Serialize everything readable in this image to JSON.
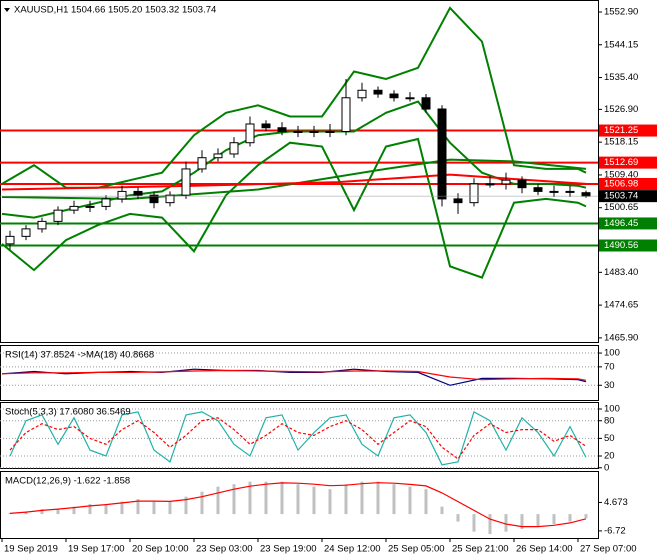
{
  "chart_data": [
    {
      "type": "candlestick",
      "title": "XAUUSD,H1  1504.66 1505.20 1503.32 1503.74",
      "x": [
        2,
        6,
        10,
        14,
        18,
        22,
        26,
        30,
        34,
        38,
        42,
        46,
        50,
        54,
        58,
        62,
        66,
        70,
        74,
        78,
        82,
        86,
        90,
        94,
        98,
        102,
        106,
        110,
        114,
        118,
        122,
        126,
        130,
        134,
        138,
        142,
        146
      ],
      "open": [
        1491,
        1493,
        1495,
        1497,
        1500,
        1501,
        1501,
        1503,
        1505,
        1504,
        1502,
        1504,
        1511,
        1514,
        1515,
        1518,
        1523,
        1522,
        1521,
        1521,
        1521,
        1521,
        1530,
        1532,
        1531,
        1530,
        1530,
        1527,
        1503,
        1502,
        1507,
        1507,
        1508,
        1506,
        1505,
        1505,
        1504.66
      ],
      "high": [
        1494.5,
        1496,
        1498,
        1501,
        1502.5,
        1502.5,
        1504,
        1506.5,
        1506,
        1505,
        1505,
        1513,
        1516,
        1516.5,
        1519.5,
        1525,
        1524,
        1523.5,
        1522.5,
        1522.5,
        1523,
        1535,
        1534,
        1533,
        1532,
        1531.5,
        1531,
        1528,
        1504.5,
        1508.5,
        1509,
        1510,
        1509,
        1507,
        1506.5,
        1506.5,
        1505.2
      ],
      "low": [
        1489.5,
        1492,
        1494,
        1496,
        1499,
        1499.5,
        1500,
        1502,
        1503,
        1500.5,
        1501,
        1503,
        1510,
        1513,
        1514,
        1517,
        1521,
        1520,
        1519.5,
        1519.5,
        1519.5,
        1520,
        1529,
        1530,
        1529,
        1529,
        1526,
        1501,
        1499,
        1501,
        1506,
        1505.5,
        1504.5,
        1504,
        1503.5,
        1503.5,
        1503.32
      ],
      "close": [
        1493,
        1495,
        1497,
        1500,
        1501,
        1501,
        1503,
        1505,
        1504,
        1502,
        1504,
        1511,
        1514,
        1515,
        1518,
        1523,
        1522,
        1521,
        1521,
        1521,
        1521,
        1530,
        1532,
        1531,
        1530,
        1530,
        1527,
        1503,
        1502,
        1507,
        1507,
        1508,
        1506,
        1505,
        1505,
        1505,
        1503.74
      ],
      "bull_color": "#ffffff",
      "bear_color": "#000000",
      "lines": [
        {
          "color": "#008000",
          "x": [
            0,
            8,
            16,
            24,
            32,
            40,
            48,
            56,
            64,
            72,
            80,
            88,
            96,
            104,
            112,
            120,
            128,
            136,
            144,
            146
          ],
          "values": [
            1507,
            1512,
            1506,
            1506,
            1508,
            1510,
            1520,
            1526,
            1528,
            1525,
            1525,
            1537,
            1535,
            1538,
            1554,
            1545,
            1512,
            1511,
            1511,
            1510
          ]
        },
        {
          "color": "#008000",
          "x": [
            0,
            8,
            16,
            24,
            32,
            40,
            48,
            56,
            64,
            72,
            80,
            88,
            96,
            104,
            112,
            120,
            128,
            136,
            144,
            146
          ],
          "values": [
            1499,
            1498,
            1500,
            1502,
            1504,
            1505,
            1510,
            1516,
            1520,
            1521,
            1521,
            1521,
            1526,
            1529,
            1518,
            1510,
            1507,
            1507,
            1506.5,
            1506
          ]
        },
        {
          "color": "#008000",
          "x": [
            0,
            8,
            16,
            24,
            32,
            40,
            48,
            56,
            64,
            72,
            80,
            88,
            96,
            104,
            112,
            120,
            128,
            136,
            144,
            146
          ],
          "values": [
            1491,
            1484,
            1492,
            1496,
            1499,
            1498,
            1489,
            1504,
            1512,
            1518,
            1517,
            1500,
            1517,
            1519,
            1485,
            1482,
            1502,
            1503,
            1502,
            1501
          ]
        },
        {
          "color": "#008000",
          "x": [
            0,
            32,
            64,
            96,
            112,
            128,
            146
          ],
          "values": [
            1503.5,
            1503,
            1505.5,
            1511,
            1513.5,
            1513,
            1511
          ]
        },
        {
          "color": "#ff0000",
          "x": [
            0,
            48,
            84,
            112,
            146
          ],
          "values": [
            1505.5,
            1506.5,
            1507.5,
            1509.5,
            1507
          ]
        }
      ],
      "levels": [
        {
          "value": 1521.25,
          "color": "#ff0000"
        },
        {
          "value": 1512.69,
          "color": "#ff0000"
        },
        {
          "value": 1506.98,
          "color": "#ff0000"
        },
        {
          "value": 1496.45,
          "color": "#008000"
        },
        {
          "value": 1490.56,
          "color": "#008000"
        }
      ],
      "last_price": 1503.74,
      "xlim": [
        -0.5,
        149
      ],
      "ylim": [
        1464.8,
        1556.1
      ],
      "yticks": [
        {
          "value": 1552.9,
          "label": "1552.90"
        },
        1544.15,
        {
          "value": 1535.4,
          "label": "1535.40"
        },
        {
          "value": 1526.9,
          "label": "1526.90"
        },
        1518.15,
        {
          "value": 1509.4,
          "label": "1509.40"
        },
        1500.65,
        {
          "value": 1483.4,
          "label": "1483.40"
        },
        1474.65,
        {
          "value": 1465.9,
          "label": "1465.90"
        }
      ],
      "grid": false
    },
    {
      "type": "line",
      "title": "RSI(14) 37.8524 ->MA(18) 40.8668",
      "x": [
        0,
        8,
        16,
        24,
        32,
        40,
        48,
        56,
        64,
        72,
        80,
        88,
        96,
        104,
        112,
        120,
        128,
        136,
        144,
        146
      ],
      "series": [
        {
          "color": "#000080",
          "values": [
            55,
            60,
            55,
            58,
            60,
            58,
            65,
            62,
            62,
            58,
            58,
            65,
            60,
            58,
            30,
            45,
            45,
            44,
            42,
            37.85
          ]
        },
        {
          "color": "#ff0000",
          "values": [
            55,
            57,
            57,
            58,
            58,
            59,
            61,
            62,
            61,
            60,
            59,
            61,
            61,
            60,
            48,
            42,
            44,
            45,
            44,
            40.87
          ]
        }
      ],
      "xlim": [
        -0.5,
        149
      ],
      "ylim": [
        -2,
        117.5
      ],
      "yticks": [
        100,
        70,
        30
      ],
      "grid": true
    },
    {
      "type": "line",
      "title": "Stoch(5,3,3) 17.6080 36.5469",
      "x": [
        2,
        6,
        10,
        14,
        18,
        22,
        26,
        30,
        34,
        38,
        42,
        46,
        50,
        54,
        58,
        62,
        66,
        70,
        74,
        78,
        82,
        86,
        90,
        94,
        98,
        102,
        106,
        110,
        114,
        118,
        122,
        126,
        130,
        134,
        138,
        142,
        146
      ],
      "series": [
        {
          "color": "#20b2aa",
          "values": [
            20,
            80,
            90,
            40,
            85,
            30,
            20,
            90,
            95,
            30,
            10,
            90,
            95,
            80,
            40,
            20,
            85,
            90,
            30,
            60,
            85,
            90,
            40,
            20,
            85,
            90,
            60,
            5,
            10,
            95,
            80,
            30,
            85,
            60,
            20,
            70,
            17.6
          ]
        },
        {
          "color": "#ff0000",
          "dash": true,
          "values": [
            30,
            60,
            75,
            65,
            70,
            50,
            40,
            65,
            80,
            60,
            35,
            55,
            80,
            85,
            65,
            40,
            55,
            75,
            60,
            55,
            70,
            80,
            65,
            40,
            60,
            80,
            70,
            35,
            15,
            55,
            75,
            60,
            65,
            65,
            45,
            55,
            36.5
          ]
        }
      ],
      "xlim": [
        -0.5,
        149
      ],
      "ylim": [
        -0.4,
        111.9
      ],
      "yticks": [
        100,
        80,
        50,
        20,
        0
      ],
      "grid": true
    },
    {
      "type": "bar",
      "title": "MACD(12,26,9) -1.622 -1.858",
      "x": [
        2,
        6,
        10,
        14,
        18,
        22,
        26,
        30,
        34,
        38,
        42,
        46,
        50,
        54,
        58,
        62,
        66,
        70,
        74,
        78,
        82,
        86,
        90,
        94,
        98,
        102,
        106,
        110,
        114,
        118,
        122,
        126,
        130,
        134,
        138,
        142,
        146
      ],
      "values": [
        0.5,
        1,
        2,
        2,
        3,
        4,
        4,
        5,
        6,
        5,
        5,
        7,
        9,
        11,
        12,
        13,
        13,
        13,
        12,
        11,
        10,
        12,
        13,
        13,
        12,
        11,
        10,
        3,
        -3,
        -7,
        -8,
        -7,
        -6,
        -5,
        -4,
        -3,
        -1.622
      ],
      "color": "#c0c0c0",
      "series": [
        {
          "color": "#ff0000",
          "values": [
            0.3,
            0.8,
            1.5,
            2,
            2.6,
            3.3,
            3.8,
            4.5,
            5.2,
            5.2,
            5.1,
            5.8,
            7,
            8.5,
            10,
            11.2,
            12,
            12.5,
            12.4,
            12,
            11.4,
            11.6,
            12.2,
            12.6,
            12.4,
            11.9,
            11.3,
            8.5,
            5,
            1.5,
            -2,
            -4,
            -5,
            -5,
            -4.5,
            -3.5,
            -1.858
          ]
        }
      ],
      "xlim": [
        -0.5,
        149
      ],
      "ylim": [
        -9.57,
        17.28
      ],
      "yticks": [
        4.673,
        -6.72
      ],
      "xticks": [
        {
          "value": 0,
          "label": "19 Sep 2019"
        },
        {
          "value": 16,
          "label": "19 Sep 17:00"
        },
        {
          "value": 32,
          "label": "20 Sep 10:00"
        },
        {
          "value": 48,
          "label": "23 Sep 03:00"
        },
        {
          "value": 64,
          "label": "23 Sep 19:00"
        },
        {
          "value": 80,
          "label": "24 Sep 12:00"
        },
        {
          "value": 96,
          "label": "25 Sep 05:00"
        },
        {
          "value": 112,
          "label": "25 Sep 21:00"
        },
        {
          "value": 128,
          "label": "26 Sep 14:00"
        },
        {
          "value": 144,
          "label": "27 Sep 07:00"
        }
      ],
      "grid": false
    }
  ]
}
